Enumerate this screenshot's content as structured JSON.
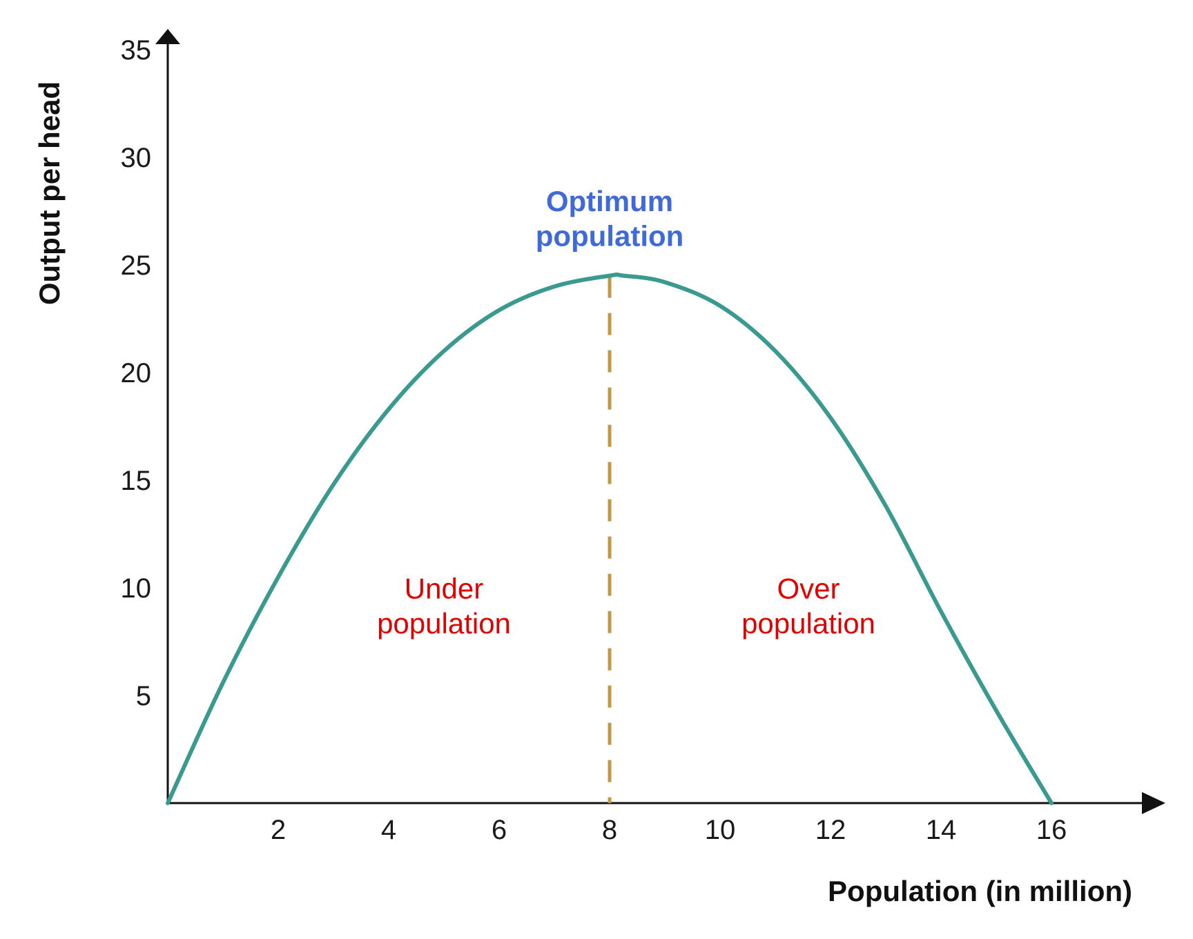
{
  "chart_data": {
    "type": "line",
    "xlabel": "Population (in million)",
    "ylabel": "Output per head",
    "xlim": [
      0,
      17.8
    ],
    "ylim": [
      0,
      35
    ],
    "x_ticks": [
      2,
      4,
      6,
      8,
      10,
      12,
      14,
      16
    ],
    "y_ticks": [
      5,
      10,
      15,
      20,
      25,
      30,
      35
    ],
    "grid": false,
    "series": [
      {
        "color": "#3a9a8f",
        "x": [
          0,
          1,
          2,
          3,
          4,
          5,
          6,
          7,
          8,
          8.25,
          9,
          10,
          11,
          12,
          13,
          14,
          15,
          16
        ],
        "y": [
          0,
          5.6,
          10.5,
          14.8,
          18.3,
          21.0,
          22.9,
          24.0,
          24.5,
          24.5,
          24.2,
          23.1,
          21.0,
          17.9,
          13.8,
          8.9,
          4.3,
          0
        ]
      }
    ],
    "reference_line": {
      "x": 8,
      "y_top": 24.5,
      "style": "dashed",
      "color": "#c29a45"
    },
    "annotations": [
      {
        "id": "optimum",
        "lines": [
          "Optimum",
          "population"
        ],
        "x": 8,
        "y": 27.5,
        "color": "#3f6ad8",
        "bold": true
      },
      {
        "id": "under",
        "lines": [
          "Under",
          "population"
        ],
        "x": 5,
        "y": 9.5,
        "color": "#e00000",
        "bold": false
      },
      {
        "id": "over",
        "lines": [
          "Over",
          "population"
        ],
        "x": 11.6,
        "y": 9.5,
        "color": "#e00000",
        "bold": false
      }
    ],
    "axis_color": "#111111"
  }
}
